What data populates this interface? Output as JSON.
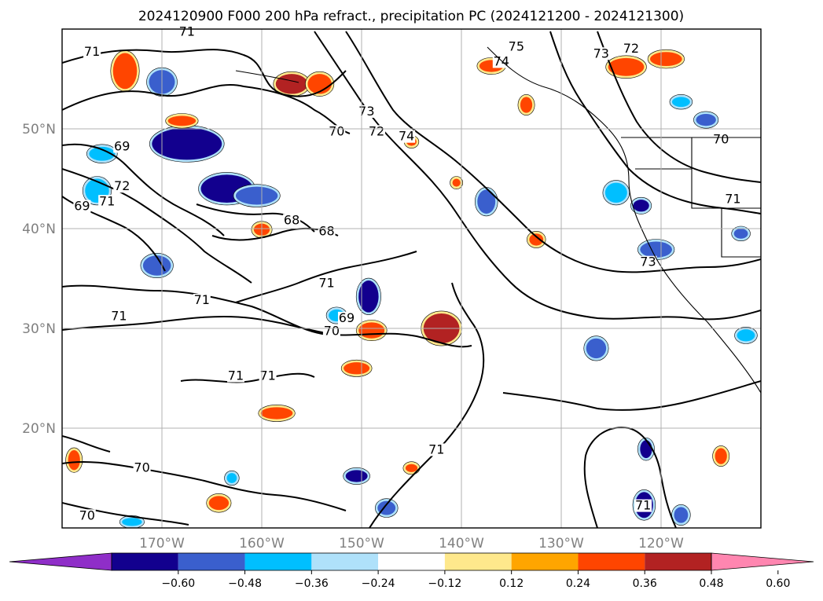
{
  "title": "2024120900 F000 200 hPa refract., precipitation PC (2024121200 - 2024121300)",
  "map": {
    "lon_range": [
      -180,
      -110
    ],
    "lat_range": [
      10,
      60
    ],
    "lon_ticks": [
      {
        "lon": -170,
        "label": "170°W"
      },
      {
        "lon": -160,
        "label": "160°W"
      },
      {
        "lon": -150,
        "label": "150°W"
      },
      {
        "lon": -140,
        "label": "140°W"
      },
      {
        "lon": -130,
        "label": "130°W"
      },
      {
        "lon": -120,
        "label": "120°W"
      }
    ],
    "lat_ticks": [
      {
        "lat": 50,
        "label": "50°N"
      },
      {
        "lat": 40,
        "label": "40°N"
      },
      {
        "lat": 30,
        "label": "30°N"
      },
      {
        "lat": 20,
        "label": "20°N"
      }
    ],
    "grid": true,
    "contour_labels": [
      {
        "text": "71",
        "lon": -177,
        "lat": 57.5
      },
      {
        "text": "71",
        "lon": -167.5,
        "lat": 59.5
      },
      {
        "text": "69",
        "lon": -178,
        "lat": 42
      },
      {
        "text": "72",
        "lon": -174,
        "lat": 44
      },
      {
        "text": "71",
        "lon": -175.5,
        "lat": 42.5
      },
      {
        "text": "69",
        "lon": -174,
        "lat": 48
      },
      {
        "text": "70",
        "lon": -152.5,
        "lat": 49.5
      },
      {
        "text": "72",
        "lon": -148.5,
        "lat": 49.5
      },
      {
        "text": "73",
        "lon": -149.5,
        "lat": 51.5
      },
      {
        "text": "74",
        "lon": -145.5,
        "lat": 49
      },
      {
        "text": "75",
        "lon": -134.5,
        "lat": 58
      },
      {
        "text": "74",
        "lon": -136,
        "lat": 56.5
      },
      {
        "text": "73",
        "lon": -126,
        "lat": 57.3
      },
      {
        "text": "72",
        "lon": -123,
        "lat": 57.8
      },
      {
        "text": "70",
        "lon": -114,
        "lat": 48.7
      },
      {
        "text": "71",
        "lon": -112.8,
        "lat": 42.7
      },
      {
        "text": "73",
        "lon": -121.3,
        "lat": 36.4
      },
      {
        "text": "68",
        "lon": -157,
        "lat": 40.6
      },
      {
        "text": "68",
        "lon": -153.5,
        "lat": 39.5
      },
      {
        "text": "71",
        "lon": -166,
        "lat": 32.6
      },
      {
        "text": "71",
        "lon": -174.3,
        "lat": 31
      },
      {
        "text": "71",
        "lon": -153.5,
        "lat": 34.3
      },
      {
        "text": "69",
        "lon": -151.5,
        "lat": 30.8
      },
      {
        "text": "70",
        "lon": -153,
        "lat": 29.5
      },
      {
        "text": "71",
        "lon": -162.6,
        "lat": 25
      },
      {
        "text": "71",
        "lon": -159.4,
        "lat": 25
      },
      {
        "text": "71",
        "lon": -142.5,
        "lat": 17.6
      },
      {
        "text": "70",
        "lon": -172,
        "lat": 15.8
      },
      {
        "text": "71",
        "lon": -121.8,
        "lat": 12
      },
      {
        "text": "70",
        "lon": -177.5,
        "lat": 11
      }
    ],
    "precip_blobs": [
      {
        "lon": -173.7,
        "lat": 55.8,
        "rx": 1.2,
        "ry": 1.8,
        "value": 0.42
      },
      {
        "lon": -170,
        "lat": 54.7,
        "rx": 1.3,
        "ry": 1.2,
        "value": -0.4
      },
      {
        "lon": -157,
        "lat": 54.5,
        "rx": 1.6,
        "ry": 1.0,
        "value": 0.48
      },
      {
        "lon": -154.2,
        "lat": 54.5,
        "rx": 1.2,
        "ry": 1.0,
        "value": 0.42
      },
      {
        "lon": -167.5,
        "lat": 48.5,
        "rx": 3.5,
        "ry": 1.6,
        "value": -0.55
      },
      {
        "lon": -163.5,
        "lat": 44,
        "rx": 2.6,
        "ry": 1.4,
        "value": -0.6
      },
      {
        "lon": -160.5,
        "lat": 43.3,
        "rx": 2.1,
        "ry": 0.9,
        "value": -0.38
      },
      {
        "lon": -176,
        "lat": 47.5,
        "rx": 1.3,
        "ry": 0.7,
        "value": -0.28
      },
      {
        "lon": -176.5,
        "lat": 43.8,
        "rx": 1.2,
        "ry": 1.2,
        "value": -0.3
      },
      {
        "lon": -170.5,
        "lat": 36.3,
        "rx": 1.4,
        "ry": 1.0,
        "value": -0.4
      },
      {
        "lon": -168,
        "lat": 50.8,
        "rx": 1.4,
        "ry": 0.5,
        "value": 0.4
      },
      {
        "lon": -160,
        "lat": 39.9,
        "rx": 0.8,
        "ry": 0.6,
        "value": 0.42
      },
      {
        "lon": -149.3,
        "lat": 33.2,
        "rx": 1.0,
        "ry": 1.6,
        "value": -0.5
      },
      {
        "lon": -142,
        "lat": 30,
        "rx": 1.8,
        "ry": 1.5,
        "value": 0.52
      },
      {
        "lon": -149,
        "lat": 29.8,
        "rx": 1.3,
        "ry": 0.8,
        "value": 0.45
      },
      {
        "lon": -152.5,
        "lat": 31.3,
        "rx": 0.8,
        "ry": 0.6,
        "value": -0.35
      },
      {
        "lon": -137,
        "lat": 56.3,
        "rx": 1.2,
        "ry": 0.6,
        "value": 0.42
      },
      {
        "lon": -133.5,
        "lat": 52.4,
        "rx": 0.6,
        "ry": 0.8,
        "value": 0.42
      },
      {
        "lon": -123.5,
        "lat": 56.2,
        "rx": 1.8,
        "ry": 0.9,
        "value": 0.45
      },
      {
        "lon": -119.5,
        "lat": 57,
        "rx": 1.6,
        "ry": 0.7,
        "value": 0.4
      },
      {
        "lon": -115.5,
        "lat": 50.9,
        "rx": 1.0,
        "ry": 0.6,
        "value": -0.45
      },
      {
        "lon": -118,
        "lat": 52.7,
        "rx": 0.9,
        "ry": 0.5,
        "value": -0.35
      },
      {
        "lon": -137.5,
        "lat": 42.7,
        "rx": 0.9,
        "ry": 1.2,
        "value": -0.45
      },
      {
        "lon": -124.5,
        "lat": 43.6,
        "rx": 1.1,
        "ry": 1.0,
        "value": -0.3
      },
      {
        "lon": -122,
        "lat": 42.3,
        "rx": 0.8,
        "ry": 0.6,
        "value": -0.5
      },
      {
        "lon": -120.5,
        "lat": 37.9,
        "rx": 1.6,
        "ry": 0.8,
        "value": -0.4
      },
      {
        "lon": -132.5,
        "lat": 38.9,
        "rx": 0.7,
        "ry": 0.6,
        "value": 0.45
      },
      {
        "lon": -112,
        "lat": 39.5,
        "rx": 0.7,
        "ry": 0.5,
        "value": -0.4
      },
      {
        "lon": -111.5,
        "lat": 29.3,
        "rx": 0.9,
        "ry": 0.6,
        "value": -0.35
      },
      {
        "lon": -126.5,
        "lat": 28,
        "rx": 1.0,
        "ry": 1.0,
        "value": -0.4
      },
      {
        "lon": -158.5,
        "lat": 21.5,
        "rx": 1.6,
        "ry": 0.6,
        "value": 0.42
      },
      {
        "lon": -150.5,
        "lat": 26,
        "rx": 1.3,
        "ry": 0.6,
        "value": 0.38
      },
      {
        "lon": -178.8,
        "lat": 16.8,
        "rx": 0.6,
        "ry": 1.0,
        "value": 0.45
      },
      {
        "lon": -164.3,
        "lat": 12.5,
        "rx": 1.0,
        "ry": 0.7,
        "value": 0.45
      },
      {
        "lon": -150.5,
        "lat": 15.2,
        "rx": 1.1,
        "ry": 0.6,
        "value": -0.5
      },
      {
        "lon": -147.5,
        "lat": 12,
        "rx": 0.9,
        "ry": 0.7,
        "value": -0.4
      },
      {
        "lon": -121.7,
        "lat": 12.3,
        "rx": 0.9,
        "ry": 1.3,
        "value": -0.55
      },
      {
        "lon": -121.5,
        "lat": 17.9,
        "rx": 0.6,
        "ry": 0.9,
        "value": -0.5
      },
      {
        "lon": -114,
        "lat": 17.2,
        "rx": 0.6,
        "ry": 0.8,
        "value": 0.42
      },
      {
        "lon": -118,
        "lat": 11.3,
        "rx": 0.7,
        "ry": 0.8,
        "value": -0.4
      },
      {
        "lon": -145,
        "lat": 16,
        "rx": 0.6,
        "ry": 0.4,
        "value": 0.42
      },
      {
        "lon": -173,
        "lat": 10.6,
        "rx": 1.0,
        "ry": 0.4,
        "value": -0.3
      },
      {
        "lon": -163,
        "lat": 15,
        "rx": 0.5,
        "ry": 0.5,
        "value": -0.35
      },
      {
        "lon": -140.5,
        "lat": 44.6,
        "rx": 0.4,
        "ry": 0.4,
        "value": 0.4
      },
      {
        "lon": -145,
        "lat": 48.7,
        "rx": 0.5,
        "ry": 0.4,
        "value": 0.42
      }
    ]
  },
  "colorbar": {
    "colors": [
      "#8f2ec8",
      "#12008e",
      "#3a5fcd",
      "#00bfff",
      "#afe1fa",
      "#ffffff",
      "#fee88c",
      "#ffa500",
      "#ff4500",
      "#b22222",
      "#ff86b0"
    ],
    "labels": [
      "−0.60",
      "−0.48",
      "−0.36",
      "−0.24",
      "−0.12",
      "0.12",
      "0.24",
      "0.36",
      "0.48",
      "0.60"
    ],
    "bounds": [
      -0.6,
      -0.48,
      -0.36,
      -0.24,
      -0.12,
      0.12,
      0.24,
      0.36,
      0.48,
      0.6
    ]
  }
}
